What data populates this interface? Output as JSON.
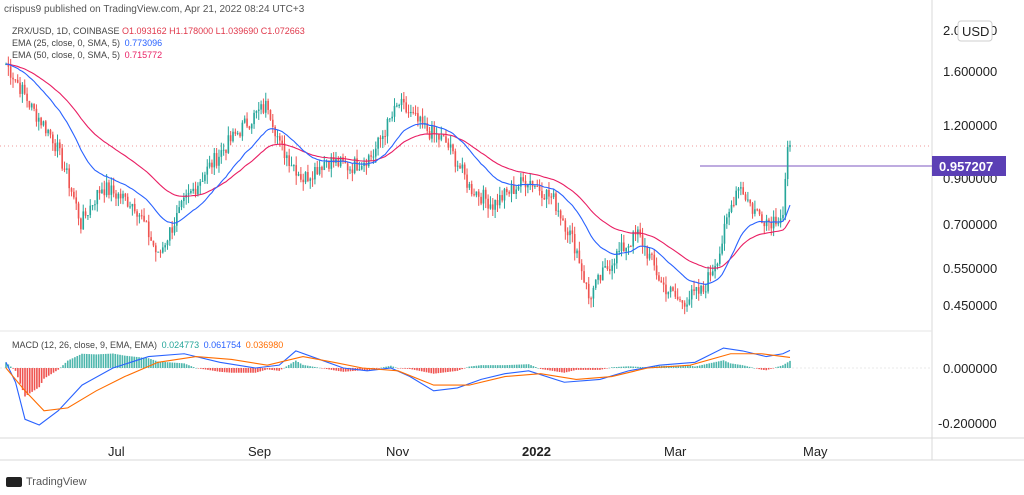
{
  "header": {
    "text": "crispus9 published on TradingView.com, Apr 21, 2022 08:24 UTC+3"
  },
  "legend": {
    "symbol_line": "ZRX/USD, 1D, COINBASE",
    "open": "O1.093162",
    "high": "H1.178000",
    "low": "L1.039690",
    "close": "C1.072663",
    "ema25_label": "EMA (25, close, 0, SMA, 5)",
    "ema25_value": "0.773096",
    "ema50_label": "EMA (50, close, 0, SMA, 5)",
    "ema50_value": "0.715772",
    "macd_label": "MACD (12, 26, close, 9, EMA, EMA)",
    "macd_hist_value": "0.024773",
    "macd_line_value": "0.061754",
    "macd_signal_value": "0.036980"
  },
  "currency_label": "USD",
  "price_tag": "0.957207",
  "watermark": "TradingView",
  "colors": {
    "up": "#26a69a",
    "down": "#ef5350",
    "ema25": "#2962ff",
    "ema50": "#e91e63",
    "macd": "#2962ff",
    "signal": "#ff6d00",
    "price_tag": "#5b3fb5",
    "hline": "#7e57c2"
  },
  "chart_data": {
    "type": "candlestick",
    "price_axis": {
      "scale": "log",
      "ticks": [
        "2.000000",
        "1.600000",
        "1.200000",
        "0.900000",
        "0.700000",
        "0.550000",
        "0.450000"
      ]
    },
    "x_ticks": [
      "Jul",
      "Sep",
      "Nov",
      "2022",
      "Mar",
      "May"
    ],
    "date_range": [
      "2021-05-21",
      "2022-04-21"
    ],
    "series_close": [
      [
        "2021-05-21",
        1.72
      ],
      [
        "2021-06-01",
        1.35
      ],
      [
        "2021-06-10",
        1.15
      ],
      [
        "2021-06-22",
        0.72
      ],
      [
        "2021-07-01",
        0.88
      ],
      [
        "2021-07-15",
        0.8
      ],
      [
        "2021-07-25",
        0.6
      ],
      [
        "2021-08-05",
        0.8
      ],
      [
        "2021-08-20",
        1.05
      ],
      [
        "2021-09-01",
        1.25
      ],
      [
        "2021-09-10",
        1.38
      ],
      [
        "2021-09-15",
        1.1
      ],
      [
        "2021-09-25",
        0.92
      ],
      [
        "2021-10-05",
        1.02
      ],
      [
        "2021-10-15",
        0.98
      ],
      [
        "2021-10-25",
        1.05
      ],
      [
        "2021-11-05",
        1.38
      ],
      [
        "2021-11-15",
        1.22
      ],
      [
        "2021-11-25",
        1.12
      ],
      [
        "2021-12-05",
        0.88
      ],
      [
        "2021-12-15",
        0.8
      ],
      [
        "2021-12-30",
        0.92
      ],
      [
        "2022-01-10",
        0.82
      ],
      [
        "2022-01-20",
        0.62
      ],
      [
        "2022-01-25",
        0.48
      ],
      [
        "2022-02-05",
        0.6
      ],
      [
        "2022-02-15",
        0.68
      ],
      [
        "2022-02-25",
        0.52
      ],
      [
        "2022-03-05",
        0.47
      ],
      [
        "2022-03-15",
        0.5
      ],
      [
        "2022-03-22",
        0.62
      ],
      [
        "2022-03-30",
        0.9
      ],
      [
        "2022-04-05",
        0.78
      ],
      [
        "2022-04-12",
        0.73
      ],
      [
        "2022-04-18",
        0.76
      ],
      [
        "2022-04-20",
        1.05
      ],
      [
        "2022-04-21",
        1.07
      ]
    ],
    "ema25": {
      "name": "EMA (25, close, 0, SMA, 5)",
      "last": 0.773096
    },
    "ema50": {
      "name": "EMA (50, close, 0, SMA, 5)",
      "last": 0.715772
    },
    "macd": {
      "name": "MACD (12, 26, close, 9, EMA, EMA)",
      "ticks": [
        "0.000000",
        "-0.200000"
      ],
      "macd_line": [
        [
          0,
          0.02
        ],
        [
          4,
          -0.05
        ],
        [
          8,
          -0.18
        ],
        [
          14,
          -0.2
        ],
        [
          22,
          -0.15
        ],
        [
          32,
          -0.06
        ],
        [
          45,
          0.0
        ],
        [
          60,
          0.04
        ],
        [
          75,
          0.05
        ],
        [
          90,
          0.02
        ],
        [
          105,
          0.0
        ],
        [
          115,
          0.01
        ],
        [
          122,
          0.06
        ],
        [
          132,
          0.03
        ],
        [
          142,
          0.0
        ],
        [
          152,
          -0.01
        ],
        [
          162,
          0.0
        ],
        [
          170,
          -0.03
        ],
        [
          180,
          -0.08
        ],
        [
          190,
          -0.07
        ],
        [
          200,
          -0.04
        ],
        [
          210,
          -0.02
        ],
        [
          220,
          -0.01
        ],
        [
          235,
          -0.05
        ],
        [
          250,
          -0.04
        ],
        [
          262,
          -0.01
        ],
        [
          275,
          0.01
        ],
        [
          290,
          0.02
        ],
        [
          302,
          0.07
        ],
        [
          310,
          0.06
        ],
        [
          320,
          0.04
        ],
        [
          327,
          0.05
        ],
        [
          330,
          0.062
        ]
      ],
      "signal_line": [
        [
          0,
          0.0
        ],
        [
          8,
          -0.08
        ],
        [
          16,
          -0.15
        ],
        [
          26,
          -0.14
        ],
        [
          38,
          -0.08
        ],
        [
          50,
          -0.03
        ],
        [
          64,
          0.02
        ],
        [
          80,
          0.04
        ],
        [
          95,
          0.03
        ],
        [
          110,
          0.01
        ],
        [
          125,
          0.04
        ],
        [
          138,
          0.02
        ],
        [
          150,
          0.0
        ],
        [
          165,
          -0.01
        ],
        [
          180,
          -0.06
        ],
        [
          195,
          -0.06
        ],
        [
          210,
          -0.03
        ],
        [
          225,
          -0.02
        ],
        [
          240,
          -0.04
        ],
        [
          255,
          -0.03
        ],
        [
          270,
          0.0
        ],
        [
          288,
          0.01
        ],
        [
          305,
          0.05
        ],
        [
          318,
          0.05
        ],
        [
          330,
          0.037
        ]
      ],
      "last_hist": 0.024773,
      "last_macd": 0.061754,
      "last_signal": 0.03698
    }
  }
}
